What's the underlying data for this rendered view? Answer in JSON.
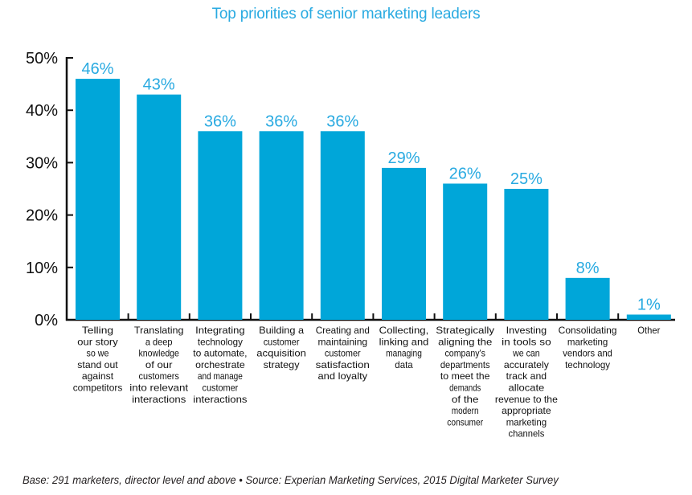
{
  "chart_data": {
    "type": "bar",
    "title": "Top priorities of senior marketing leaders",
    "xlabel": "",
    "ylabel": "",
    "ylim": [
      0,
      50
    ],
    "yticks": [
      "0%",
      "10%",
      "20%",
      "30%",
      "40%",
      "50%"
    ],
    "grid": false,
    "bar_color": "#00a6d9",
    "categories": [
      [
        "Telling",
        "our story",
        "so we",
        "stand out",
        "against",
        "competitors"
      ],
      [
        "Translating",
        "a deep",
        "knowledge",
        "of our",
        "customers",
        "into relevant",
        "interactions"
      ],
      [
        "Integrating",
        "technology",
        "to automate,",
        "orchestrate",
        "and manage",
        "customer",
        "interactions"
      ],
      [
        "Building a",
        "customer",
        "acquisition",
        "strategy"
      ],
      [
        "Creating and",
        "maintaining",
        "customer",
        "satisfaction",
        "and loyalty"
      ],
      [
        "Collecting,",
        "linking and",
        "managing",
        "data"
      ],
      [
        "Strategically",
        "aligning the",
        "company's",
        "departments",
        "to meet the",
        "demands",
        "of the",
        "modern",
        "consumer"
      ],
      [
        "Investing",
        "in tools so",
        "we can",
        "accurately",
        "track and",
        "allocate",
        "revenue to the",
        "appropriate",
        "marketing",
        "channels"
      ],
      [
        "Consolidating",
        "marketing",
        "vendors and",
        "technology"
      ],
      [
        "Other"
      ]
    ],
    "values": [
      46,
      43,
      36,
      36,
      36,
      29,
      26,
      25,
      8,
      1
    ],
    "value_labels": [
      "46%",
      "43%",
      "36%",
      "36%",
      "36%",
      "29%",
      "26%",
      "25%",
      "8%",
      "1%"
    ]
  },
  "footer": "Base: 291 marketers, director level and above  •  Source: Experian Marketing Services, 2015 Digital Marketer Survey"
}
